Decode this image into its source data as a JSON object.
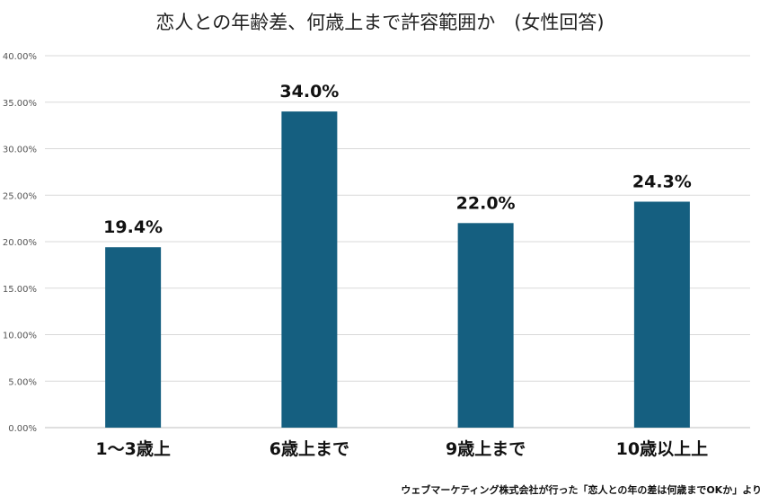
{
  "chart_data": {
    "type": "bar",
    "title": "恋人との年齢差、何歳上まで許容範囲か　(女性回答)",
    "categories": [
      "1～3歳上",
      "6歳上まで",
      "9歳上まで",
      "10歳以上上"
    ],
    "values": [
      19.4,
      34.0,
      22.0,
      24.3
    ],
    "data_labels": [
      "19.4%",
      "34.0%",
      "22.0%",
      "24.3%"
    ],
    "yticks": [
      "0.00%",
      "5.00%",
      "10.00%",
      "15.00%",
      "20.00%",
      "25.00%",
      "30.00%",
      "35.00%",
      "40.00%"
    ],
    "ylim": [
      0,
      40
    ],
    "xlabel": "",
    "ylabel": "",
    "grid": true,
    "bar_color": "#155f80",
    "source": "ウェブマーケティング株式会社が行った「恋人との年の差は何歳までOKか」より"
  }
}
